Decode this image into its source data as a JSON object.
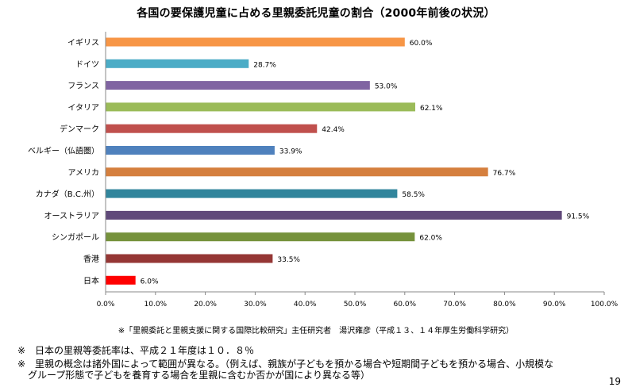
{
  "chart_data": {
    "type": "bar",
    "orientation": "horizontal",
    "title": "各国の要保護児童に占める里親委託児童の割合（2000年前後の状況）",
    "categories": [
      "イギリス",
      "ドイツ",
      "フランス",
      "イタリア",
      "デンマーク",
      "ベルギー（仏語圏）",
      "アメリカ",
      "カナダ（B.C.州）",
      "オーストラリア",
      "シンガポール",
      "香港",
      "日本"
    ],
    "values": [
      60.0,
      28.7,
      53.0,
      62.1,
      42.4,
      33.9,
      76.7,
      58.5,
      91.5,
      62.0,
      33.5,
      6.0
    ],
    "value_labels": [
      "60.0%",
      "28.7%",
      "53.0%",
      "62.1%",
      "42.4%",
      "33.9%",
      "76.7%",
      "58.5%",
      "91.5%",
      "62.0%",
      "33.5%",
      "6.0%"
    ],
    "colors": [
      "#F79646",
      "#4BACC6",
      "#8064A2",
      "#9BBB59",
      "#C0504D",
      "#4F81BD",
      "#D57F3E",
      "#31859C",
      "#60497A",
      "#76923C",
      "#953735",
      "#FF0000"
    ],
    "xlim": [
      0,
      100
    ],
    "x_ticks": [
      "0.0%",
      "10.0%",
      "20.0%",
      "30.0%",
      "40.0%",
      "50.0%",
      "60.0%",
      "70.0%",
      "80.0%",
      "90.0%",
      "100.0%"
    ],
    "grid": false,
    "legend": "none"
  },
  "source_note": "※「里親委託と里親支援に関する国際比較研究」主任研究者　湯沢雍彦（平成１３、１４年厚生労働科学研究）",
  "notes": [
    "※　日本の里親等委託率は、平成２１年度は１０．８％",
    "※　里親の概念は諸外国によって範囲が異なる。（例えば、親族が子どもを預かる場合や短期間子どもを預かる場合、小規模な",
    "グループ形態で子どもを養育する場合を里親に含むか否かが国により異なる等）"
  ],
  "page_number": "19"
}
